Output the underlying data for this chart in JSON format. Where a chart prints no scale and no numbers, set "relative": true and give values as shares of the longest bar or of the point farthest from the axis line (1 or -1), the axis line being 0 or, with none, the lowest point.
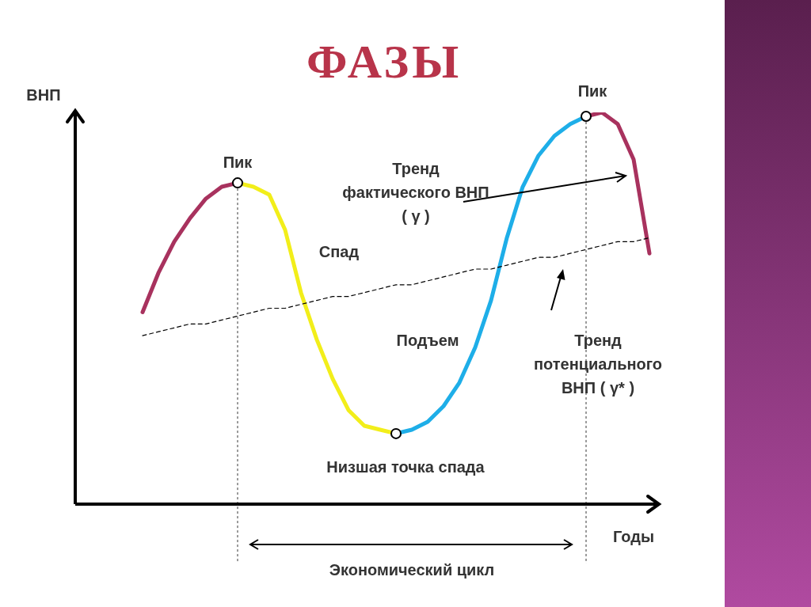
{
  "chart_data": {
    "type": "line",
    "title": "ФАЗЫ",
    "xlabel": "Годы",
    "ylabel": "ВНП",
    "relative": true,
    "marker": "none",
    "categories": [
      null,
      null,
      null,
      null,
      null,
      null,
      null,
      null,
      null,
      null,
      null,
      null,
      null,
      null,
      null,
      null,
      null,
      null,
      null,
      null,
      null,
      null,
      null,
      null,
      null,
      null,
      null,
      null,
      null,
      null,
      null,
      null,
      null
    ],
    "annotations": [
      "Пик",
      "Пик",
      "Тренд фактического ВНП ( γ )",
      "Спад",
      "Подъем",
      "Тренд потенциального ВНП ( γ* )",
      "Низшая точка спада",
      "Экономический цикл"
    ],
    "series": [
      {
        "type": "line",
        "color": "#a8325e",
        "line_style": "solid",
        "values": [
          0.49,
          0.59,
          0.67,
          0.73,
          0.78,
          0.81,
          0.82,
          null,
          null,
          null,
          null,
          null,
          null,
          null,
          null,
          null,
          null,
          null,
          null,
          null,
          null,
          null,
          null,
          null,
          null,
          null,
          null,
          null,
          null,
          null,
          null,
          null,
          null
        ]
      },
      {
        "type": "line",
        "color": "#f2ee1a",
        "line_style": "solid",
        "values": [
          null,
          null,
          null,
          null,
          null,
          null,
          0.82,
          0.81,
          0.79,
          0.7,
          0.54,
          0.42,
          0.32,
          0.24,
          0.2,
          0.19,
          0.18,
          null,
          null,
          null,
          null,
          null,
          null,
          null,
          null,
          null,
          null,
          null,
          null,
          null,
          null,
          null,
          null
        ]
      },
      {
        "type": "line",
        "color": "#1eaee8",
        "line_style": "solid",
        "values": [
          null,
          null,
          null,
          null,
          null,
          null,
          null,
          null,
          null,
          null,
          null,
          null,
          null,
          null,
          null,
          null,
          0.18,
          0.19,
          0.21,
          0.25,
          0.31,
          0.4,
          0.52,
          0.68,
          0.81,
          0.89,
          0.94,
          0.97,
          0.99,
          null,
          null,
          null,
          null
        ]
      },
      {
        "type": "line",
        "color": "#a8325e",
        "line_style": "solid",
        "values": [
          null,
          null,
          null,
          null,
          null,
          null,
          null,
          null,
          null,
          null,
          null,
          null,
          null,
          null,
          null,
          null,
          null,
          null,
          null,
          null,
          null,
          null,
          null,
          null,
          null,
          null,
          null,
          null,
          0.99,
          1.0,
          0.97,
          0.88,
          0.64
        ]
      },
      {
        "type": "line",
        "color": "#000000",
        "line_style": "dashed",
        "values": [
          0.43,
          0.44,
          0.45,
          0.46,
          0.46,
          0.47,
          0.48,
          0.49,
          0.5,
          0.5,
          0.51,
          0.52,
          0.53,
          0.53,
          0.54,
          0.55,
          0.56,
          0.56,
          0.57,
          0.58,
          0.59,
          0.6,
          0.6,
          0.61,
          0.62,
          0.63,
          0.63,
          0.64,
          0.65,
          0.66,
          0.67,
          0.67,
          0.68
        ]
      }
    ]
  }
}
